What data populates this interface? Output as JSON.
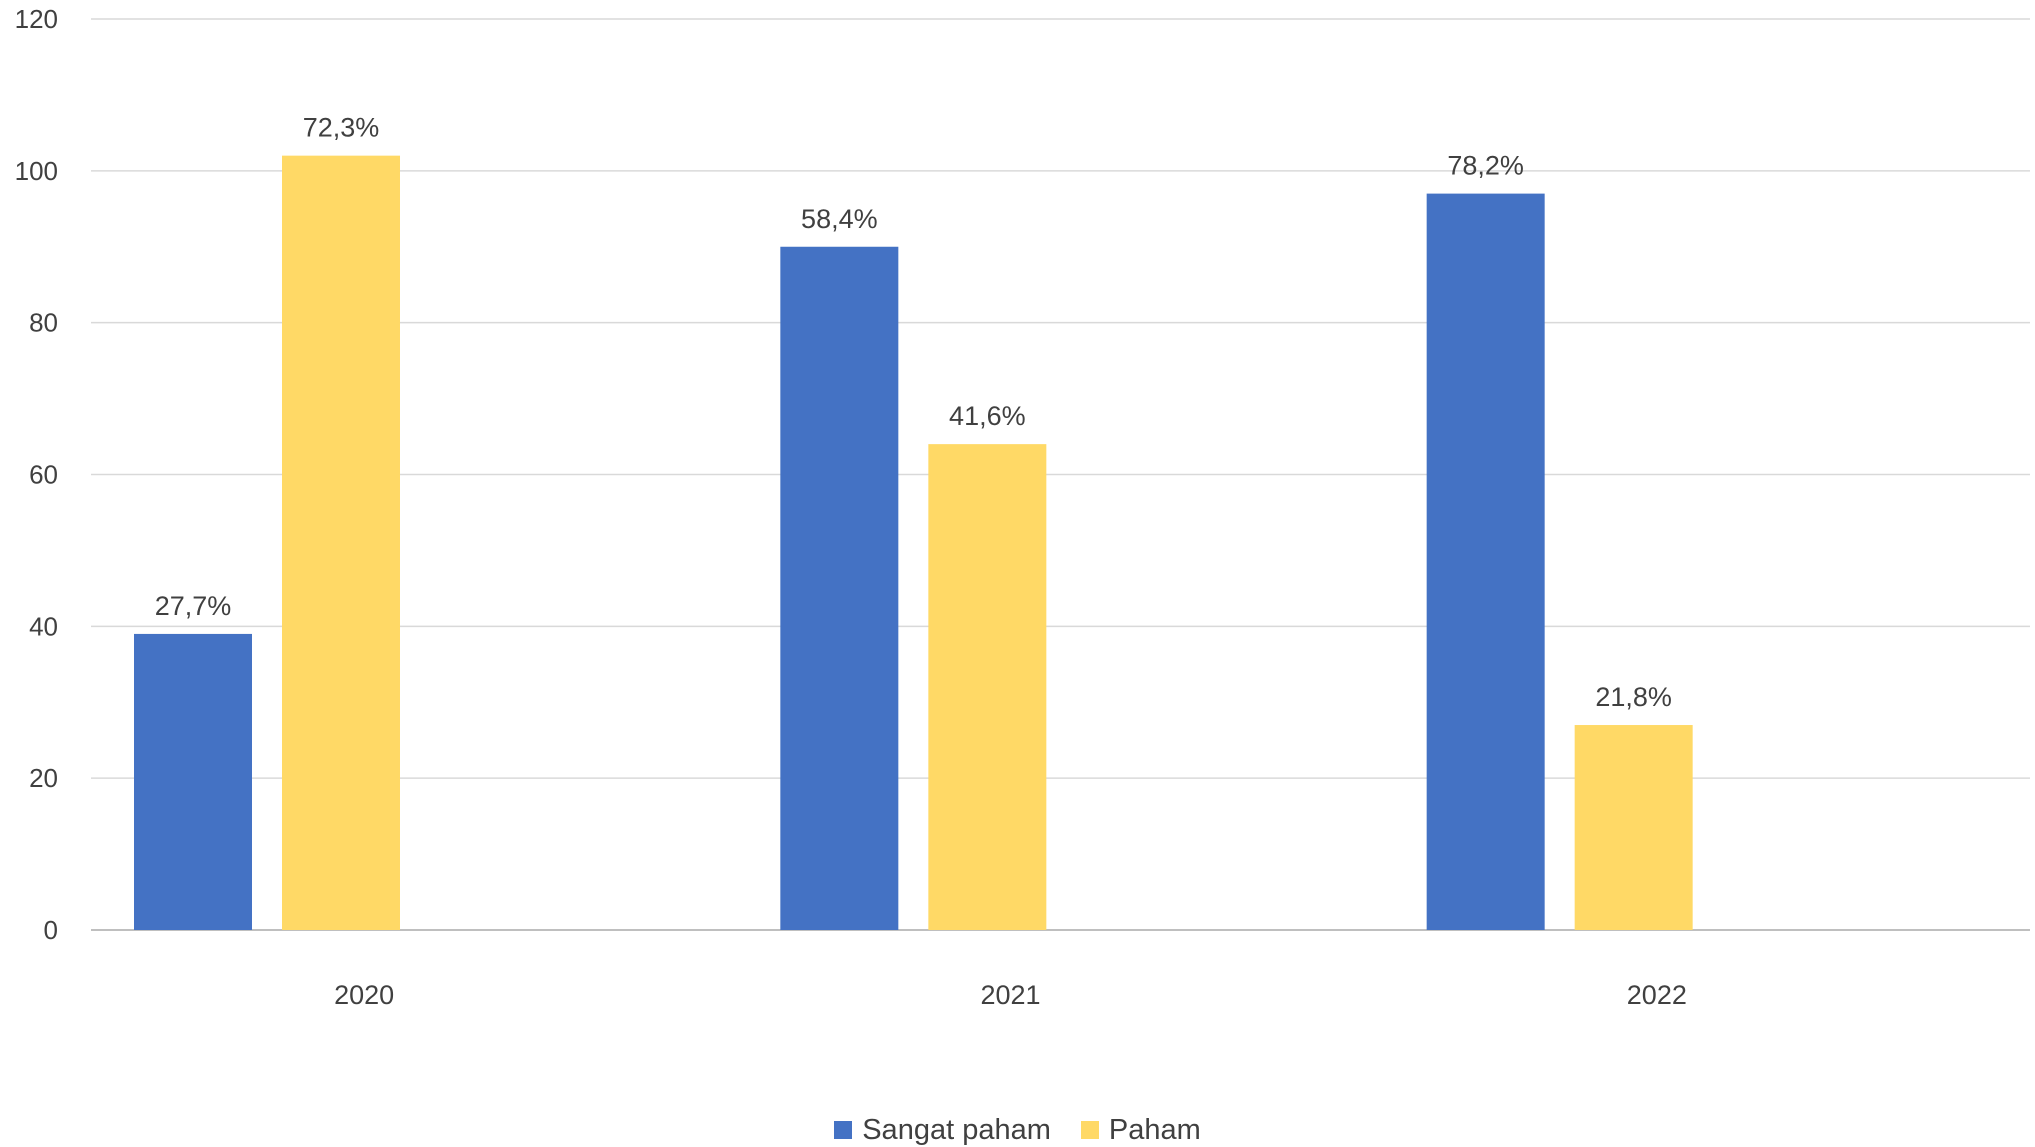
{
  "chart_data": {
    "type": "bar",
    "categories": [
      "2020",
      "2021",
      "2022"
    ],
    "series": [
      {
        "name": "Sangat paham",
        "color": "#4472C4",
        "values": [
          39,
          90,
          97
        ],
        "labels": [
          "27,7%",
          "58,4%",
          "78,2%"
        ]
      },
      {
        "name": "Paham",
        "color": "#FFD966",
        "values": [
          102,
          64,
          27
        ],
        "labels": [
          "72,3%",
          "41,6%",
          "21,8%"
        ]
      }
    ],
    "ylim": [
      0,
      120
    ],
    "yticks": [
      "0",
      "20",
      "40",
      "60",
      "80",
      "100",
      "120"
    ],
    "grid": true,
    "legend_position": "bottom"
  }
}
